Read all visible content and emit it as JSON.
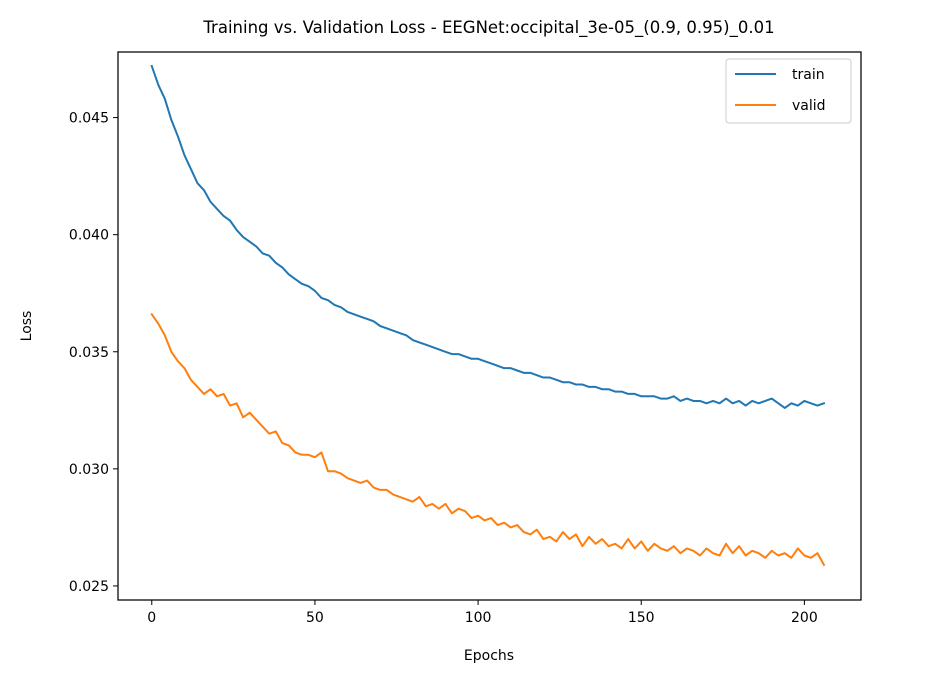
{
  "chart_data": {
    "type": "line",
    "title": "Training vs. Validation Loss - EEGNet:occipital_3e-05_(0.9, 0.95)_0.01",
    "xlabel": "Epochs",
    "ylabel": "Loss",
    "xlim": [
      -10.35,
      217.35
    ],
    "ylim": [
      0.0244,
      0.0478
    ],
    "xticks": [
      0,
      50,
      100,
      150,
      200
    ],
    "xtick_labels": [
      "0",
      "50",
      "100",
      "150",
      "200"
    ],
    "yticks": [
      0.025,
      0.03,
      0.035,
      0.04,
      0.045
    ],
    "ytick_labels": [
      "0.025",
      "0.030",
      "0.035",
      "0.040",
      "0.045"
    ],
    "grid": false,
    "legend_position": "top-right",
    "series": [
      {
        "name": "train",
        "color": "#1f77b4",
        "x": [
          0,
          2,
          4,
          6,
          8,
          10,
          12,
          14,
          16,
          18,
          20,
          22,
          24,
          26,
          28,
          30,
          32,
          34,
          36,
          38,
          40,
          42,
          44,
          46,
          48,
          50,
          52,
          54,
          56,
          58,
          60,
          62,
          64,
          66,
          68,
          70,
          72,
          74,
          76,
          78,
          80,
          82,
          84,
          86,
          88,
          90,
          92,
          94,
          96,
          98,
          100,
          102,
          104,
          106,
          108,
          110,
          112,
          114,
          116,
          118,
          120,
          122,
          124,
          126,
          128,
          130,
          132,
          134,
          136,
          138,
          140,
          142,
          144,
          146,
          148,
          150,
          152,
          154,
          156,
          158,
          160,
          162,
          164,
          166,
          168,
          170,
          172,
          174,
          176,
          178,
          180,
          182,
          184,
          186,
          188,
          190,
          192,
          194,
          196,
          198,
          200,
          202,
          204,
          206
        ],
        "y": [
          0.0472,
          0.0464,
          0.0458,
          0.0449,
          0.0442,
          0.0434,
          0.0428,
          0.0422,
          0.0419,
          0.0414,
          0.0411,
          0.0408,
          0.0406,
          0.0402,
          0.0399,
          0.0397,
          0.0395,
          0.0392,
          0.0391,
          0.0388,
          0.0386,
          0.0383,
          0.0381,
          0.0379,
          0.0378,
          0.0376,
          0.0373,
          0.0372,
          0.037,
          0.0369,
          0.0367,
          0.0366,
          0.0365,
          0.0364,
          0.0363,
          0.0361,
          0.036,
          0.0359,
          0.0358,
          0.0357,
          0.0355,
          0.0354,
          0.0353,
          0.0352,
          0.0351,
          0.035,
          0.0349,
          0.0349,
          0.0348,
          0.0347,
          0.0347,
          0.0346,
          0.0345,
          0.0344,
          0.0343,
          0.0343,
          0.0342,
          0.0341,
          0.0341,
          0.034,
          0.0339,
          0.0339,
          0.0338,
          0.0337,
          0.0337,
          0.0336,
          0.0336,
          0.0335,
          0.0335,
          0.0334,
          0.0334,
          0.0333,
          0.0333,
          0.0332,
          0.0332,
          0.0331,
          0.0331,
          0.0331,
          0.033,
          0.033,
          0.0331,
          0.0329,
          0.033,
          0.0329,
          0.0329,
          0.0328,
          0.0329,
          0.0328,
          0.033,
          0.0328,
          0.0329,
          0.0327,
          0.0329,
          0.0328,
          0.0329,
          0.033,
          0.0328,
          0.0326,
          0.0328,
          0.0327,
          0.0329,
          0.0328,
          0.0327,
          0.0328
        ]
      },
      {
        "name": "valid",
        "color": "#ff7f0e",
        "x": [
          0,
          2,
          4,
          6,
          8,
          10,
          12,
          14,
          16,
          18,
          20,
          22,
          24,
          26,
          28,
          30,
          32,
          34,
          36,
          38,
          40,
          42,
          44,
          46,
          48,
          50,
          52,
          54,
          56,
          58,
          60,
          62,
          64,
          66,
          68,
          70,
          72,
          74,
          76,
          78,
          80,
          82,
          84,
          86,
          88,
          90,
          92,
          94,
          96,
          98,
          100,
          102,
          104,
          106,
          108,
          110,
          112,
          114,
          116,
          118,
          120,
          122,
          124,
          126,
          128,
          130,
          132,
          134,
          136,
          138,
          140,
          142,
          144,
          146,
          148,
          150,
          152,
          154,
          156,
          158,
          160,
          162,
          164,
          166,
          168,
          170,
          172,
          174,
          176,
          178,
          180,
          182,
          184,
          186,
          188,
          190,
          192,
          194,
          196,
          198,
          200,
          202,
          204,
          206
        ],
        "y": [
          0.0366,
          0.0362,
          0.0357,
          0.035,
          0.0346,
          0.0343,
          0.0338,
          0.0335,
          0.0332,
          0.0334,
          0.0331,
          0.0332,
          0.0327,
          0.0328,
          0.0322,
          0.0324,
          0.0321,
          0.0318,
          0.0315,
          0.0316,
          0.0311,
          0.031,
          0.0307,
          0.0306,
          0.0306,
          0.0305,
          0.0307,
          0.0299,
          0.0299,
          0.0298,
          0.0296,
          0.0295,
          0.0294,
          0.0295,
          0.0292,
          0.0291,
          0.0291,
          0.0289,
          0.0288,
          0.0287,
          0.0286,
          0.0288,
          0.0284,
          0.0285,
          0.0283,
          0.0285,
          0.0281,
          0.0283,
          0.0282,
          0.0279,
          0.028,
          0.0278,
          0.0279,
          0.0276,
          0.0277,
          0.0275,
          0.0276,
          0.0273,
          0.0272,
          0.0274,
          0.027,
          0.0271,
          0.0269,
          0.0273,
          0.027,
          0.0272,
          0.0267,
          0.0271,
          0.0268,
          0.027,
          0.0267,
          0.0268,
          0.0266,
          0.027,
          0.0266,
          0.0269,
          0.0265,
          0.0268,
          0.0266,
          0.0265,
          0.0267,
          0.0264,
          0.0266,
          0.0265,
          0.0263,
          0.0266,
          0.0264,
          0.0263,
          0.0268,
          0.0264,
          0.0267,
          0.0263,
          0.0265,
          0.0264,
          0.0262,
          0.0265,
          0.0263,
          0.0264,
          0.0262,
          0.0266,
          0.0263,
          0.0262,
          0.0264,
          0.0259
        ]
      }
    ]
  }
}
